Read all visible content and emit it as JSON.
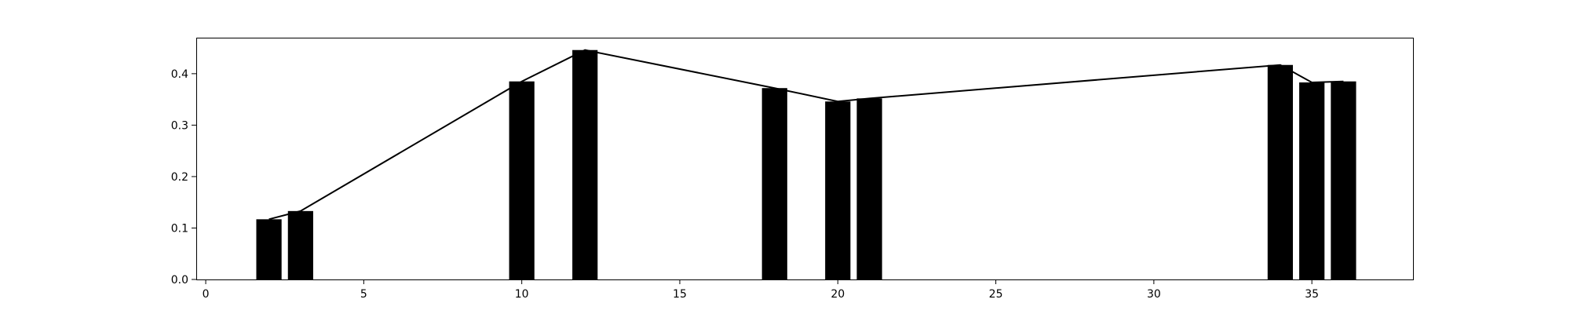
{
  "chart_data": {
    "type": "bar",
    "title": "",
    "xlabel": "",
    "ylabel": "",
    "xlim": [
      -0.3,
      38.2
    ],
    "ylim": [
      0,
      0.47
    ],
    "bar_width": 0.8,
    "x": [
      2,
      3,
      10,
      12,
      18,
      20,
      21,
      34,
      35,
      36
    ],
    "values": [
      0.117,
      0.133,
      0.385,
      0.446,
      0.372,
      0.346,
      0.352,
      0.417,
      0.383,
      0.385
    ],
    "line": {
      "x": [
        2,
        3,
        10,
        12,
        18,
        20,
        21,
        34,
        35,
        36
      ],
      "y": [
        0.117,
        0.133,
        0.385,
        0.446,
        0.372,
        0.346,
        0.352,
        0.417,
        0.383,
        0.385
      ]
    },
    "xticks": [
      0,
      5,
      10,
      15,
      20,
      25,
      30,
      35
    ],
    "yticks": [
      0.0,
      0.1,
      0.2,
      0.3,
      0.4
    ],
    "ytick_labels": [
      "0.0",
      "0.1",
      "0.2",
      "0.3",
      "0.4"
    ],
    "bar_color": "#000000",
    "line_color": "#000000",
    "grid": false,
    "legend": "none"
  }
}
